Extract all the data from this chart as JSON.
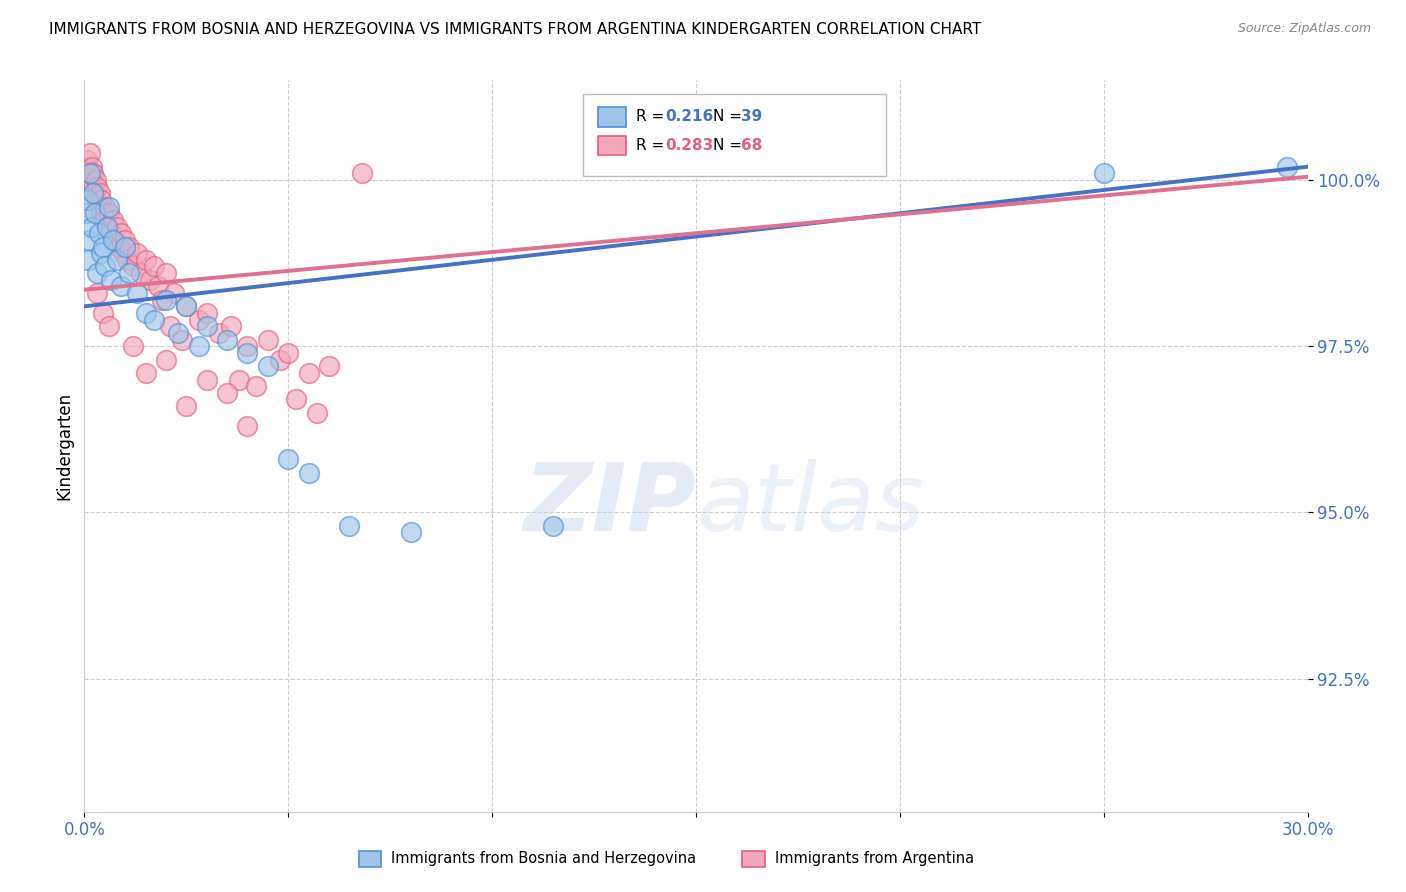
{
  "title": "IMMIGRANTS FROM BOSNIA AND HERZEGOVINA VS IMMIGRANTS FROM ARGENTINA KINDERGARTEN CORRELATION CHART",
  "source": "Source: ZipAtlas.com",
  "ylabel": "Kindergarten",
  "ytick_vals": [
    92.5,
    95.0,
    97.5,
    100.0
  ],
  "xlim": [
    0.0,
    30.0
  ],
  "ylim": [
    90.5,
    101.5
  ],
  "legend_label_blue": "Immigrants from Bosnia and Herzegovina",
  "legend_label_pink": "Immigrants from Argentina",
  "blue_r": "0.216",
  "blue_n": "39",
  "pink_r": "0.283",
  "pink_n": "68",
  "blue_fill": "#9FC5E8",
  "blue_edge": "#4A90D9",
  "pink_fill": "#F4A7B9",
  "pink_edge": "#E06080",
  "blue_line": "#4472C4",
  "pink_line": "#E07090",
  "blue_scatter": [
    [
      0.05,
      99.5
    ],
    [
      0.08,
      99.7
    ],
    [
      0.1,
      98.8
    ],
    [
      0.12,
      99.1
    ],
    [
      0.15,
      100.1
    ],
    [
      0.18,
      99.3
    ],
    [
      0.2,
      99.8
    ],
    [
      0.25,
      99.5
    ],
    [
      0.3,
      98.6
    ],
    [
      0.35,
      99.2
    ],
    [
      0.4,
      98.9
    ],
    [
      0.45,
      99.0
    ],
    [
      0.5,
      98.7
    ],
    [
      0.55,
      99.3
    ],
    [
      0.6,
      99.6
    ],
    [
      0.65,
      98.5
    ],
    [
      0.7,
      99.1
    ],
    [
      0.8,
      98.8
    ],
    [
      0.9,
      98.4
    ],
    [
      1.0,
      99.0
    ],
    [
      1.1,
      98.6
    ],
    [
      1.3,
      98.3
    ],
    [
      1.5,
      98.0
    ],
    [
      1.7,
      97.9
    ],
    [
      2.0,
      98.2
    ],
    [
      2.3,
      97.7
    ],
    [
      2.5,
      98.1
    ],
    [
      2.8,
      97.5
    ],
    [
      3.0,
      97.8
    ],
    [
      3.5,
      97.6
    ],
    [
      4.0,
      97.4
    ],
    [
      4.5,
      97.2
    ],
    [
      5.0,
      95.8
    ],
    [
      5.5,
      95.6
    ],
    [
      6.5,
      94.8
    ],
    [
      8.0,
      94.7
    ],
    [
      11.5,
      94.8
    ],
    [
      25.0,
      100.1
    ],
    [
      29.5,
      100.2
    ]
  ],
  "pink_scatter": [
    [
      0.05,
      100.2
    ],
    [
      0.07,
      100.3
    ],
    [
      0.1,
      100.1
    ],
    [
      0.12,
      100.0
    ],
    [
      0.15,
      100.4
    ],
    [
      0.18,
      100.2
    ],
    [
      0.2,
      99.9
    ],
    [
      0.22,
      100.1
    ],
    [
      0.25,
      99.8
    ],
    [
      0.28,
      100.0
    ],
    [
      0.3,
      99.7
    ],
    [
      0.32,
      99.9
    ],
    [
      0.35,
      99.6
    ],
    [
      0.38,
      99.8
    ],
    [
      0.4,
      99.5
    ],
    [
      0.42,
      99.7
    ],
    [
      0.45,
      99.4
    ],
    [
      0.5,
      99.6
    ],
    [
      0.55,
      99.3
    ],
    [
      0.6,
      99.5
    ],
    [
      0.65,
      99.2
    ],
    [
      0.7,
      99.4
    ],
    [
      0.75,
      99.1
    ],
    [
      0.8,
      99.3
    ],
    [
      0.85,
      99.0
    ],
    [
      0.9,
      99.2
    ],
    [
      0.95,
      98.9
    ],
    [
      1.0,
      99.1
    ],
    [
      1.05,
      98.8
    ],
    [
      1.1,
      99.0
    ],
    [
      1.2,
      98.7
    ],
    [
      1.3,
      98.9
    ],
    [
      1.4,
      98.6
    ],
    [
      1.5,
      98.8
    ],
    [
      1.6,
      98.5
    ],
    [
      1.7,
      98.7
    ],
    [
      1.8,
      98.4
    ],
    [
      2.0,
      98.6
    ],
    [
      2.2,
      98.3
    ],
    [
      2.5,
      98.1
    ],
    [
      2.8,
      97.9
    ],
    [
      3.0,
      98.0
    ],
    [
      3.3,
      97.7
    ],
    [
      3.6,
      97.8
    ],
    [
      4.0,
      97.5
    ],
    [
      4.5,
      97.6
    ],
    [
      4.8,
      97.3
    ],
    [
      5.0,
      97.4
    ],
    [
      5.5,
      97.1
    ],
    [
      6.0,
      97.2
    ],
    [
      1.9,
      98.2
    ],
    [
      2.1,
      97.8
    ],
    [
      2.4,
      97.6
    ],
    [
      3.8,
      97.0
    ],
    [
      4.2,
      96.9
    ],
    [
      5.2,
      96.7
    ],
    [
      5.7,
      96.5
    ],
    [
      0.45,
      98.0
    ],
    [
      0.6,
      97.8
    ],
    [
      1.2,
      97.5
    ],
    [
      2.0,
      97.3
    ],
    [
      3.0,
      97.0
    ],
    [
      3.5,
      96.8
    ],
    [
      6.8,
      100.1
    ],
    [
      0.3,
      98.3
    ],
    [
      1.5,
      97.1
    ],
    [
      2.5,
      96.6
    ],
    [
      4.0,
      96.3
    ]
  ],
  "blue_trend_x": [
    0.0,
    30.0
  ],
  "blue_trend_y": [
    98.1,
    100.2
  ],
  "pink_trend_x": [
    0.0,
    30.0
  ],
  "pink_trend_y": [
    98.35,
    100.05
  ]
}
